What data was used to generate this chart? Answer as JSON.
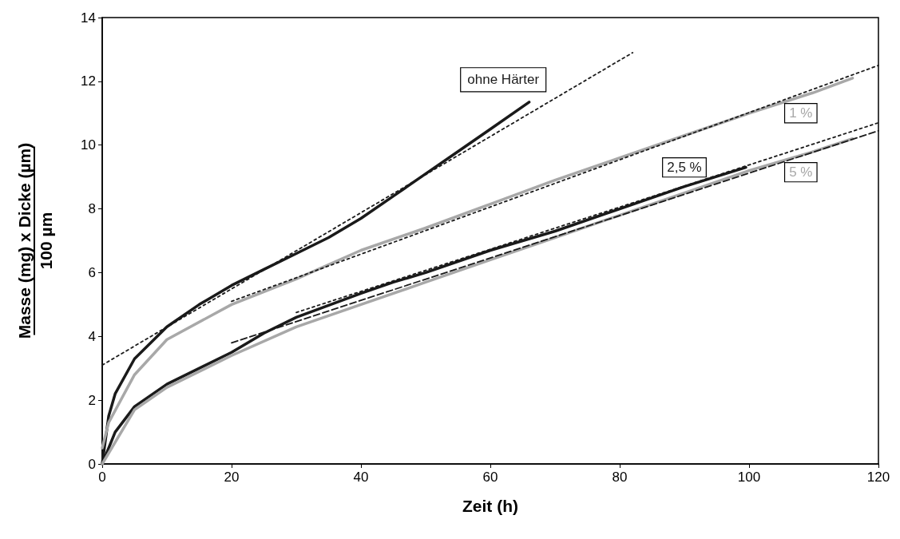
{
  "chart_data": {
    "type": "line",
    "xlabel": "Zeit (h)",
    "ylabel": "Masse (mg) x Dicke (µm)\n100 µm",
    "xlim": [
      0,
      120
    ],
    "xticks": [
      0,
      20,
      40,
      60,
      80,
      100,
      120
    ],
    "ylim": [
      0,
      14
    ],
    "yticks": [
      0,
      2,
      4,
      6,
      8,
      10,
      12,
      14
    ],
    "grid": false,
    "legend": false,
    "marker": "none",
    "series": [
      {
        "name": "ohne Härter",
        "color": "#1a1a1a",
        "line_style": "solid",
        "x": [
          0,
          1,
          2,
          5,
          10,
          15,
          20,
          25,
          30,
          35,
          40,
          45,
          50,
          55,
          60,
          66
        ],
        "values": [
          0,
          1.5,
          2.2,
          3.3,
          4.3,
          5.0,
          5.6,
          6.1,
          6.6,
          7.1,
          7.7,
          8.4,
          9.1,
          9.8,
          10.5,
          11.35
        ]
      },
      {
        "name": "1 %",
        "color": "#a8a8a8",
        "line_style": "solid",
        "x": [
          0,
          1,
          5,
          10,
          20,
          30,
          40,
          50,
          60,
          70,
          80,
          90,
          100,
          110,
          116
        ],
        "values": [
          0.5,
          1.3,
          2.8,
          3.9,
          5.0,
          5.8,
          6.7,
          7.4,
          8.15,
          8.9,
          9.6,
          10.3,
          11.0,
          11.65,
          12.1
        ]
      },
      {
        "name": "2,5 %",
        "color": "#1a1a1a",
        "line_style": "solid",
        "x": [
          0,
          2,
          5,
          10,
          20,
          25,
          30,
          40,
          45,
          50,
          60,
          70,
          80,
          90,
          99.5
        ],
        "values": [
          0,
          1.0,
          1.8,
          2.5,
          3.5,
          4.1,
          4.6,
          5.35,
          5.7,
          6.0,
          6.7,
          7.3,
          8.0,
          8.7,
          9.3
        ]
      },
      {
        "name": "5 %",
        "color": "#a8a8a8",
        "line_style": "solid",
        "x": [
          0,
          5,
          10,
          20,
          30,
          40,
          50,
          60,
          70,
          80,
          90,
          100,
          110,
          116
        ],
        "values": [
          0,
          1.7,
          2.4,
          3.4,
          4.3,
          5.0,
          5.7,
          6.4,
          7.1,
          7.8,
          8.5,
          9.2,
          9.8,
          10.2
        ]
      },
      {
        "color": "#1a1a1a",
        "line_style": "dotted",
        "x": [
          0,
          82
        ],
        "values": [
          3.1,
          12.9
        ]
      },
      {
        "color": "#1a1a1a",
        "line_style": "dotted",
        "x": [
          20,
          120
        ],
        "values": [
          5.1,
          12.5
        ]
      },
      {
        "color": "#1a1a1a",
        "line_style": "dotted",
        "x": [
          30,
          120
        ],
        "values": [
          4.75,
          10.7
        ]
      },
      {
        "color": "#1a1a1a",
        "line_style": "dashed",
        "x": [
          20,
          120
        ],
        "values": [
          3.8,
          10.45
        ]
      }
    ]
  }
}
